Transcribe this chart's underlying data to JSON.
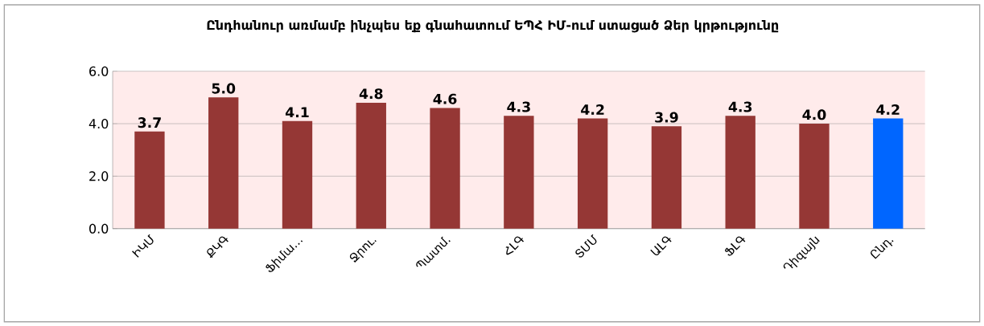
{
  "chart_data": {
    "type": "bar",
    "title": "Ընդհանուր առմամբ ինչպես եք գնահատում ԵՊՀ ԻՄ-ում ստացած Ձեր կրթությունը",
    "categories": [
      "ԻԿՄ",
      "ՔԿԳ",
      "Ֆիմա…",
      "Ջրու.",
      "Պատմ.",
      "ՀԼԳ",
      "ՏՄՄ",
      "ԱԼԳ",
      "ՖԼԳ",
      "Դիզայն",
      "Ընդ."
    ],
    "values": [
      3.7,
      5.0,
      4.1,
      4.8,
      4.6,
      4.3,
      4.2,
      3.9,
      4.3,
      4.0,
      4.2
    ],
    "value_labels": [
      "3.7",
      "5.0",
      "4.1",
      "4.8",
      "4.6",
      "4.3",
      "4.2",
      "3.9",
      "4.3",
      "4.0",
      "4.2"
    ],
    "colors": [
      "#953735",
      "#953735",
      "#953735",
      "#953735",
      "#953735",
      "#953735",
      "#953735",
      "#953735",
      "#953735",
      "#953735",
      "#0066ff"
    ],
    "ylim": [
      0,
      6
    ],
    "yticks": [
      {
        "value": 0,
        "label": "0.0"
      },
      {
        "value": 2,
        "label": "2.0"
      },
      {
        "value": 4,
        "label": "4.0"
      },
      {
        "value": 6,
        "label": "6.0"
      }
    ],
    "grid": "y"
  }
}
